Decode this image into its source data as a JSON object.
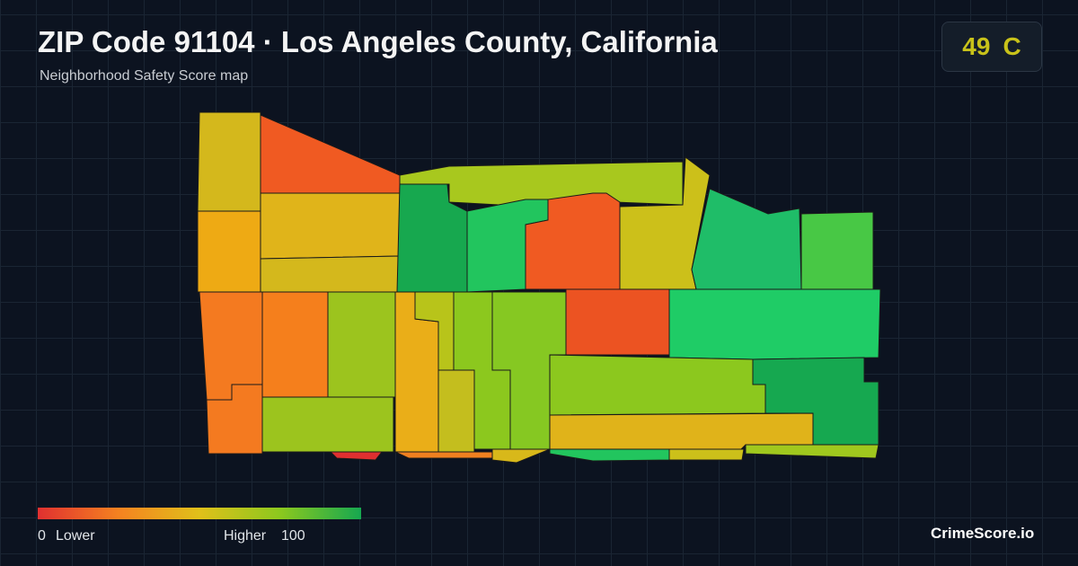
{
  "header": {
    "title": "ZIP Code 91104 · Los Angeles County, California",
    "subtitle": "Neighborhood Safety Score map"
  },
  "score": {
    "value": "49",
    "grade": "C"
  },
  "legend": {
    "min": 0,
    "min_label": "Lower",
    "max_label": "Higher",
    "max": 100
  },
  "brand": "CrimeScore.io"
}
